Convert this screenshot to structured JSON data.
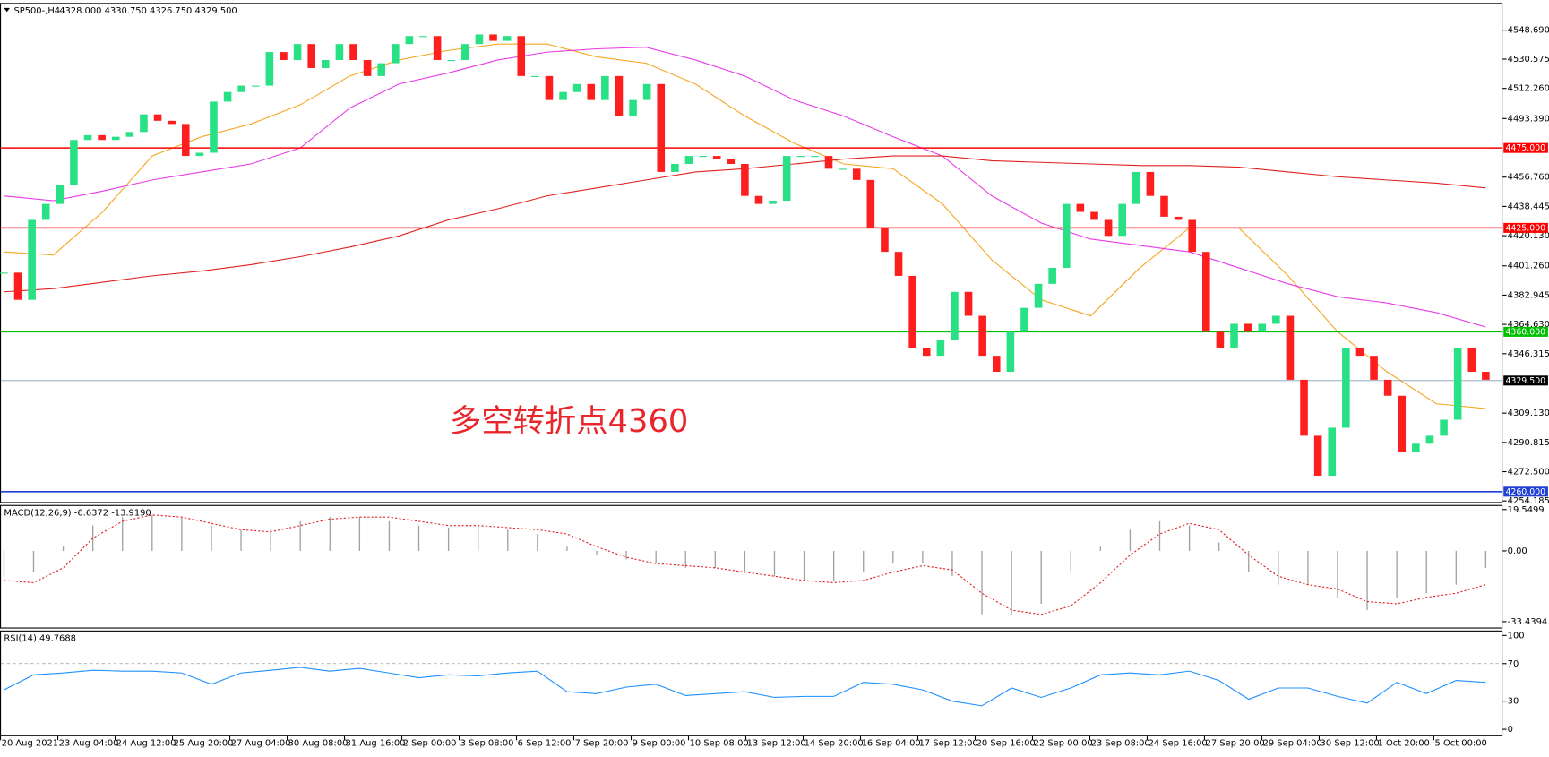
{
  "chart_data": [
    {
      "type": "candlestick",
      "title": "SP500-,H4",
      "subtitle": "4328.000 4330.750 4326.750 4329.500",
      "annotation": "多空转折点4360",
      "up_color": "#27e184",
      "down_color": "#ff1e1e",
      "close": [
        4397,
        4380,
        4430,
        4440,
        4452,
        4480,
        4483,
        4480,
        4482,
        4485,
        4496,
        4492,
        4490,
        4470,
        4472,
        4504,
        4510,
        4514,
        4514,
        4535,
        4530,
        4540,
        4525,
        4530,
        4540,
        4530,
        4520,
        4528,
        4540,
        4545,
        4545,
        4530,
        4530,
        4540,
        4546,
        4542,
        4545,
        4520,
        4520,
        4505,
        4510,
        4515,
        4505,
        4520,
        4495,
        4505,
        4515,
        4460,
        4465,
        4470,
        4470,
        4468,
        4465,
        4445,
        4440,
        4442,
        4470,
        4470,
        4470,
        4462,
        4462,
        4455,
        4425,
        4410,
        4395,
        4350,
        4345,
        4355,
        4385,
        4370,
        4345,
        4335,
        4360,
        4375,
        4390,
        4400,
        4440,
        4435,
        4430,
        4420,
        4440,
        4460,
        4445,
        4432,
        4430,
        4410,
        4360,
        4350,
        4365,
        4360,
        4365,
        4370,
        4330,
        4295,
        4270,
        4300,
        4350,
        4345,
        4330,
        4320,
        4285,
        4290,
        4295,
        4305,
        4350,
        4335,
        4330
      ],
      "overlays": [
        {
          "color": "#f5a623",
          "values": [
            4410,
            4408,
            4435,
            4470,
            4482,
            4490,
            4502,
            4520,
            4530,
            4536,
            4540,
            4540,
            4532,
            4528,
            4515,
            4495,
            4478,
            4465,
            4462,
            4440,
            4405,
            4380,
            4370,
            4400,
            4425,
            4425,
            4395,
            4360,
            4335,
            4315,
            4312
          ]
        },
        {
          "color": "#e83ce8",
          "values": [
            4445,
            4442,
            4448,
            4455,
            4460,
            4465,
            4475,
            4500,
            4515,
            4522,
            4530,
            4535,
            4537,
            4538,
            4530,
            4520,
            4505,
            4495,
            4482,
            4470,
            4445,
            4428,
            4418,
            4414,
            4410,
            4400,
            4390,
            4382,
            4378,
            4372,
            4363
          ]
        },
        {
          "color": "#e02020",
          "values": [
            4385,
            4387,
            4391,
            4395,
            4398,
            4402,
            4407,
            4413,
            4420,
            4430,
            4437,
            4445,
            4450,
            4455,
            4460,
            4462,
            4465,
            4468,
            4470,
            4470,
            4467,
            4466,
            4465,
            4464,
            4464,
            4463,
            4460,
            4457,
            4455,
            4453,
            4450
          ]
        }
      ],
      "levels": [
        {
          "value": 4475,
          "label": "4475.000",
          "color": "#ff0000"
        },
        {
          "value": 4425,
          "label": "4425.000",
          "color": "#ff0000"
        },
        {
          "value": 4360,
          "label": "4360.000",
          "color": "#00c000"
        },
        {
          "value": 4260,
          "label": "4260.000",
          "color": "#1f3fd6"
        },
        {
          "value": 4329.5,
          "label": "4329.500",
          "color": "#000000"
        }
      ],
      "ylim": [
        4252.9,
        4565.7
      ],
      "yticks": [
        {
          "value": 4548.69,
          "label": "4548.690"
        },
        {
          "value": 4530.575,
          "label": "4530.575"
        },
        {
          "value": 4512.26,
          "label": "4512.260"
        },
        {
          "value": 4493.39,
          "label": "4493.390"
        },
        {
          "value": 4456.76,
          "label": "4456.760"
        },
        {
          "value": 4438.445,
          "label": "4438.445"
        },
        {
          "value": 4420.13,
          "label": "4420.130"
        },
        {
          "value": 4401.26,
          "label": "4401.260"
        },
        {
          "value": 4382.945,
          "label": "4382.945"
        },
        {
          "value": 4364.63,
          "label": "4364.630"
        },
        {
          "value": 4346.315,
          "label": "4346.315"
        },
        {
          "value": 4309.13,
          "label": "4309.130"
        },
        {
          "value": 4290.815,
          "label": "4290.815"
        },
        {
          "value": 4272.5,
          "label": "4272.500"
        },
        {
          "value": 4254.185,
          "label": "4254.185"
        }
      ],
      "x_labels": [
        "20 Aug 2021",
        "23 Aug 04:00",
        "24 Aug 12:00",
        "25 Aug 20:00",
        "27 Aug 04:00",
        "30 Aug 08:00",
        "31 Aug 16:00",
        "2 Sep 00:00",
        "3 Sep 08:00",
        "6 Sep 12:00",
        "7 Sep 20:00",
        "9 Sep 00:00",
        "10 Sep 08:00",
        "13 Sep 12:00",
        "14 Sep 20:00",
        "16 Sep 04:00",
        "17 Sep 12:00",
        "20 Sep 16:00",
        "22 Sep 00:00",
        "23 Sep 08:00",
        "24 Sep 16:00",
        "27 Sep 20:00",
        "29 Sep 04:00",
        "30 Sep 12:00",
        "1 Oct 20:00",
        "5 Oct 00:00"
      ]
    },
    {
      "type": "macd",
      "title": "MACD(12,26,9) -6.6372 -13.9190",
      "histogram": {
        "color": "#a0a0a0",
        "values": [
          -12,
          -10,
          2,
          12,
          16,
          17,
          16,
          12,
          10,
          10,
          14,
          16,
          16,
          14,
          12,
          11,
          12,
          10,
          8,
          2,
          -2,
          -4,
          -6,
          -8,
          -8,
          -10,
          -12,
          -14,
          -14,
          -10,
          -6,
          -6,
          -12,
          -30,
          -30,
          -25,
          -10,
          2,
          10,
          14,
          12,
          4,
          -10,
          -16,
          -16,
          -22,
          -28,
          -22,
          -20,
          -16,
          -8
        ]
      },
      "signal": {
        "color": "#e02020",
        "values": [
          -14,
          -15,
          -8,
          6,
          14,
          17,
          16,
          13,
          10,
          9,
          12,
          15,
          16,
          16,
          14,
          12,
          12,
          11,
          10,
          8,
          2,
          -3,
          -6,
          -7,
          -8,
          -10,
          -12,
          -14,
          -15,
          -14,
          -10,
          -7,
          -9,
          -20,
          -28,
          -30,
          -26,
          -15,
          -2,
          8,
          13,
          10,
          -2,
          -12,
          -16,
          -18,
          -24,
          -25,
          -22,
          -20,
          -16
        ]
      },
      "ylim": [
        -36.7,
        21.7
      ],
      "yticks": [
        {
          "value": 19.5499,
          "label": "19.5499"
        },
        {
          "value": 0,
          "label": "0.00"
        },
        {
          "value": -33.4394,
          "label": "-33.4394"
        }
      ]
    },
    {
      "type": "rsi",
      "title": "RSI(14) 49.7688",
      "line": {
        "color": "#1e90ff",
        "values": [
          42,
          58,
          60,
          63,
          62,
          62,
          60,
          48,
          60,
          63,
          66,
          62,
          65,
          60,
          55,
          58,
          57,
          60,
          62,
          40,
          38,
          45,
          48,
          36,
          38,
          40,
          34,
          35,
          35,
          50,
          48,
          42,
          30,
          25,
          44,
          34,
          44,
          58,
          60,
          58,
          62,
          52,
          32,
          44,
          44,
          35,
          28,
          50,
          38,
          52,
          50
        ]
      },
      "ylim": [
        -7.4,
        105.3
      ],
      "yticks": [
        100,
        70,
        30,
        0
      ],
      "levels": [
        70,
        30
      ]
    }
  ]
}
